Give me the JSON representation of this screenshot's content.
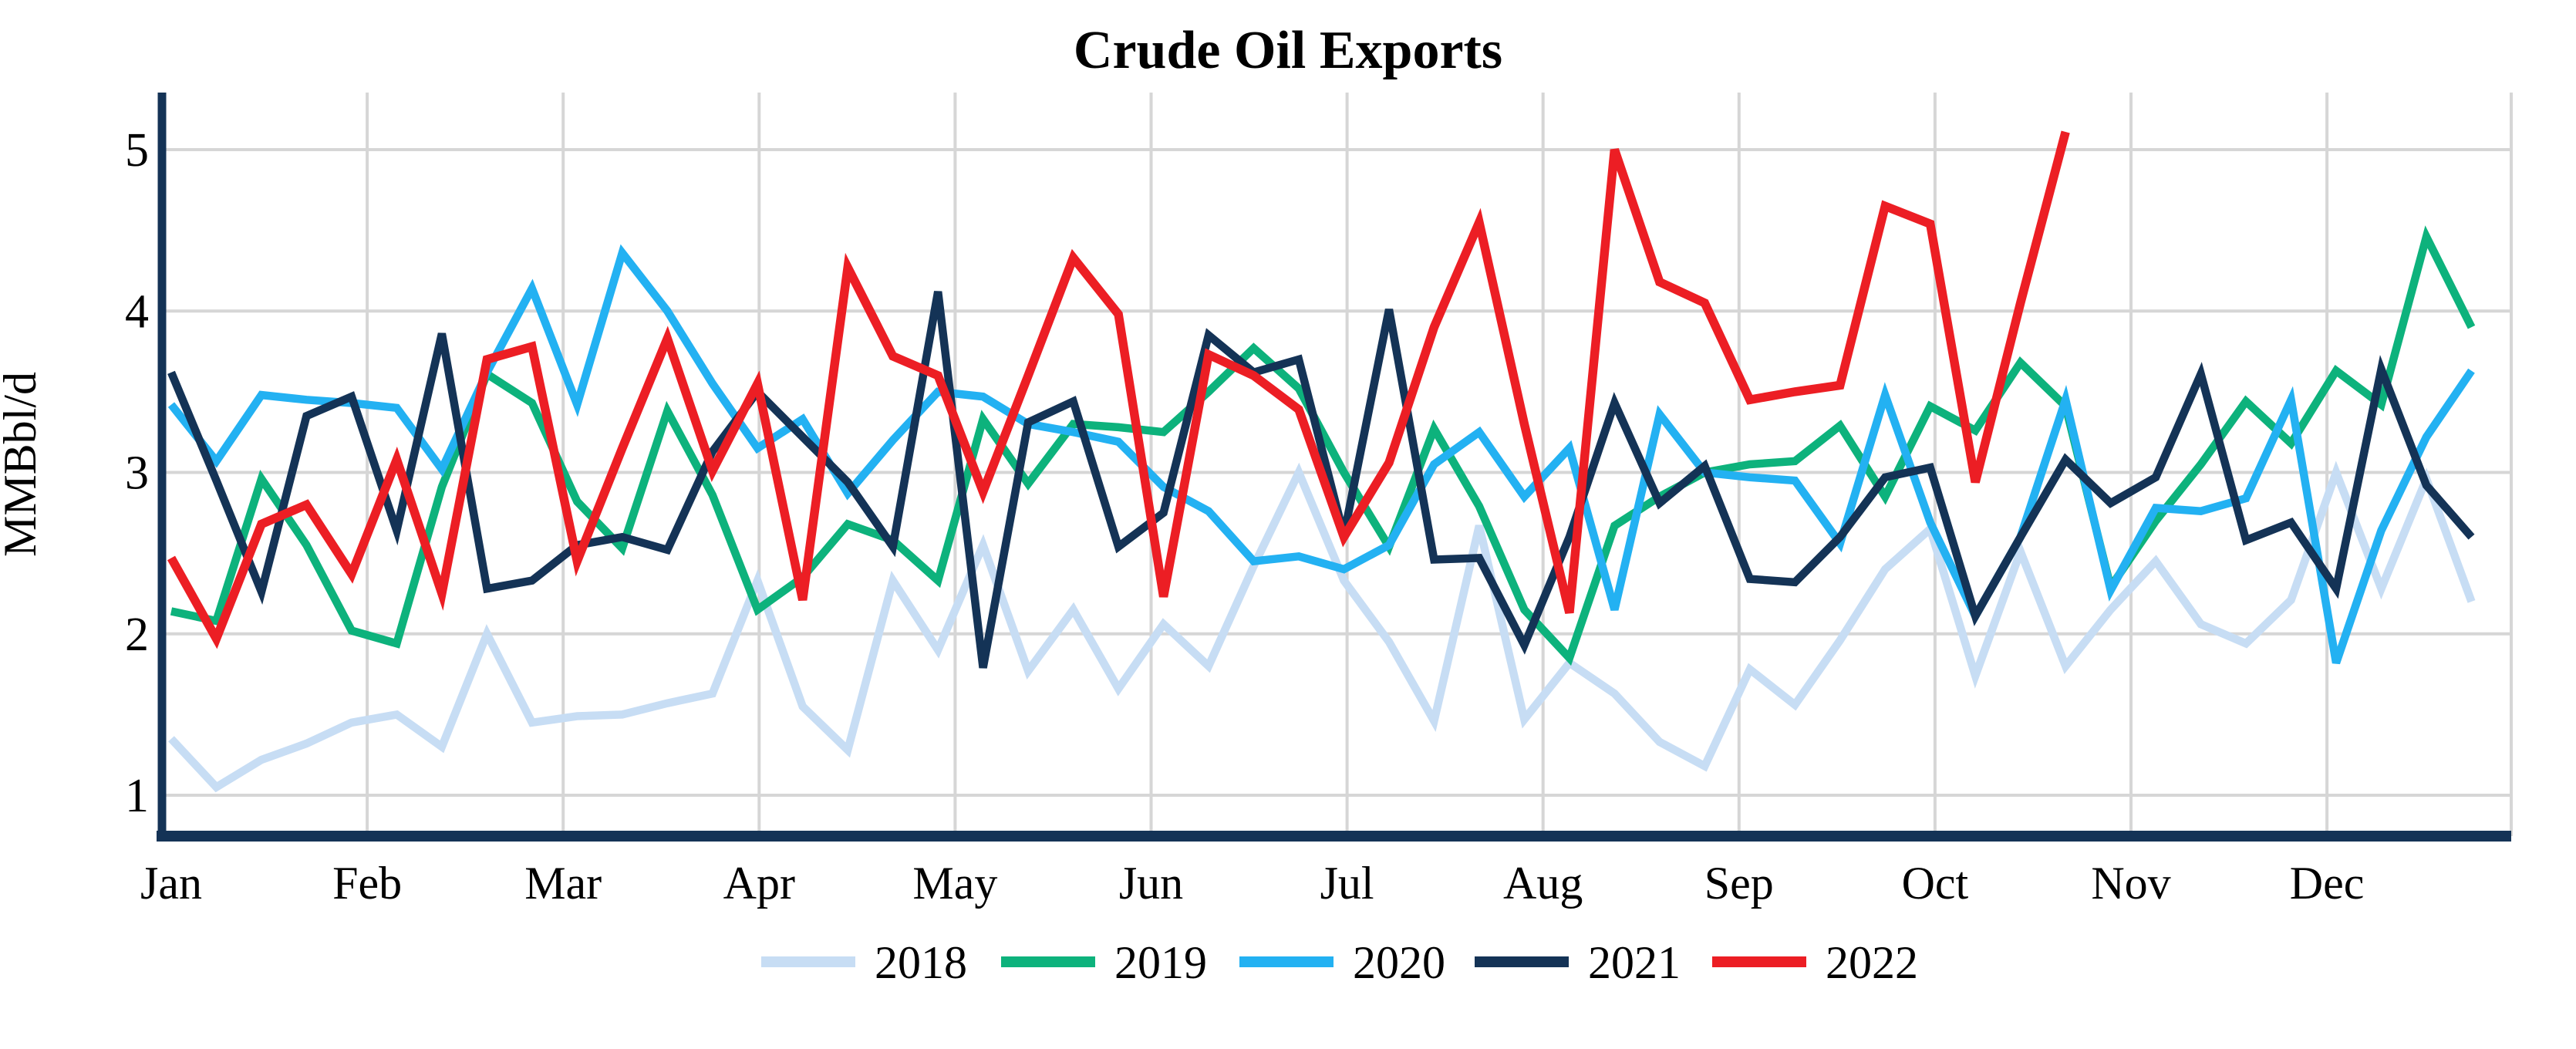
{
  "chart_data": {
    "type": "line",
    "title": "Crude Oil Exports",
    "ylabel": "MMBbl/d",
    "xlabel": "",
    "ylim": [
      1,
      5
    ],
    "yticks": [
      1,
      2,
      3,
      4,
      5
    ],
    "xticklabels": [
      "Jan",
      "Feb",
      "Mar",
      "Apr",
      "May",
      "Jun",
      "Jul",
      "Aug",
      "Sep",
      "Oct",
      "Nov",
      "Dec"
    ],
    "x_unit": "week-of-year",
    "points_per_full_series": 52,
    "grid": true,
    "legend_position": "bottom-center",
    "colors": {
      "grid": "#d6d6d6",
      "axis": "#143356",
      "background": "#ffffff",
      "text": "#000000"
    },
    "series": [
      {
        "name": "2018",
        "color": "#c7ddf4",
        "values": [
          1.35,
          1.05,
          1.22,
          1.32,
          1.45,
          1.5,
          1.3,
          2.0,
          1.45,
          1.49,
          1.5,
          1.57,
          1.63,
          2.33,
          1.55,
          1.28,
          2.33,
          1.9,
          2.55,
          1.77,
          2.15,
          1.66,
          2.06,
          1.8,
          2.42,
          3.0,
          2.33,
          1.95,
          1.46,
          2.67,
          1.47,
          1.82,
          1.63,
          1.33,
          1.18,
          1.78,
          1.56,
          1.96,
          2.4,
          2.65,
          1.74,
          2.51,
          1.8,
          2.15,
          2.45,
          2.06,
          1.94,
          2.21,
          3.0,
          2.28,
          2.96,
          2.2
        ]
      },
      {
        "name": "2019",
        "color": "#0db27c",
        "values": [
          2.14,
          2.08,
          2.96,
          2.55,
          2.02,
          1.94,
          2.91,
          3.61,
          3.43,
          2.82,
          2.53,
          3.38,
          2.86,
          2.15,
          2.35,
          2.68,
          2.58,
          2.33,
          3.33,
          2.93,
          3.3,
          3.28,
          3.25,
          3.5,
          3.77,
          3.52,
          3.0,
          2.54,
          3.27,
          2.79,
          2.15,
          1.85,
          2.67,
          2.85,
          3.0,
          3.05,
          3.07,
          3.29,
          2.85,
          3.41,
          3.26,
          3.68,
          3.41,
          2.29,
          2.7,
          3.05,
          3.44,
          3.18,
          3.63,
          3.42,
          4.46,
          3.9
        ]
      },
      {
        "name": "2020",
        "color": "#23b1f2",
        "values": [
          3.42,
          3.07,
          3.48,
          3.45,
          3.43,
          3.4,
          3.02,
          3.62,
          4.14,
          3.42,
          4.36,
          4.0,
          3.55,
          3.15,
          3.33,
          2.87,
          3.2,
          3.5,
          3.47,
          3.3,
          3.25,
          3.19,
          2.91,
          2.76,
          2.45,
          2.48,
          2.4,
          2.55,
          3.05,
          3.25,
          2.85,
          3.15,
          2.15,
          3.36,
          3.0,
          2.97,
          2.95,
          2.56,
          3.48,
          2.69,
          2.11,
          2.6,
          3.45,
          2.27,
          2.78,
          2.76,
          2.84,
          3.45,
          1.82,
          2.64,
          3.22,
          3.63
        ]
      },
      {
        "name": "2021",
        "color": "#143356",
        "values": [
          3.62,
          2.95,
          2.26,
          3.35,
          3.47,
          2.64,
          3.86,
          2.28,
          2.33,
          2.55,
          2.6,
          2.52,
          3.13,
          3.5,
          3.22,
          2.94,
          2.54,
          4.12,
          1.79,
          3.31,
          3.44,
          2.54,
          2.75,
          3.85,
          3.62,
          3.7,
          2.61,
          4.01,
          2.46,
          2.47,
          1.93,
          2.6,
          3.43,
          2.81,
          3.04,
          2.34,
          2.32,
          2.6,
          2.97,
          3.03,
          2.11,
          2.6,
          3.08,
          2.81,
          2.97,
          3.61,
          2.58,
          2.69,
          2.28,
          3.64,
          2.92,
          2.6
        ]
      },
      {
        "name": "2022",
        "color": "#ec1e24",
        "values": [
          2.47,
          1.97,
          2.68,
          2.8,
          2.37,
          3.08,
          2.25,
          3.7,
          3.78,
          2.45,
          3.15,
          3.83,
          3.01,
          3.55,
          2.21,
          4.27,
          3.72,
          3.6,
          2.88,
          3.6,
          4.33,
          3.98,
          2.23,
          3.73,
          3.6,
          3.39,
          2.6,
          3.06,
          3.9,
          4.55,
          3.3,
          2.13,
          5.0,
          4.18,
          4.05,
          3.45,
          3.5,
          3.54,
          4.65,
          4.54,
          2.94,
          4.05,
          5.11
        ]
      }
    ]
  }
}
